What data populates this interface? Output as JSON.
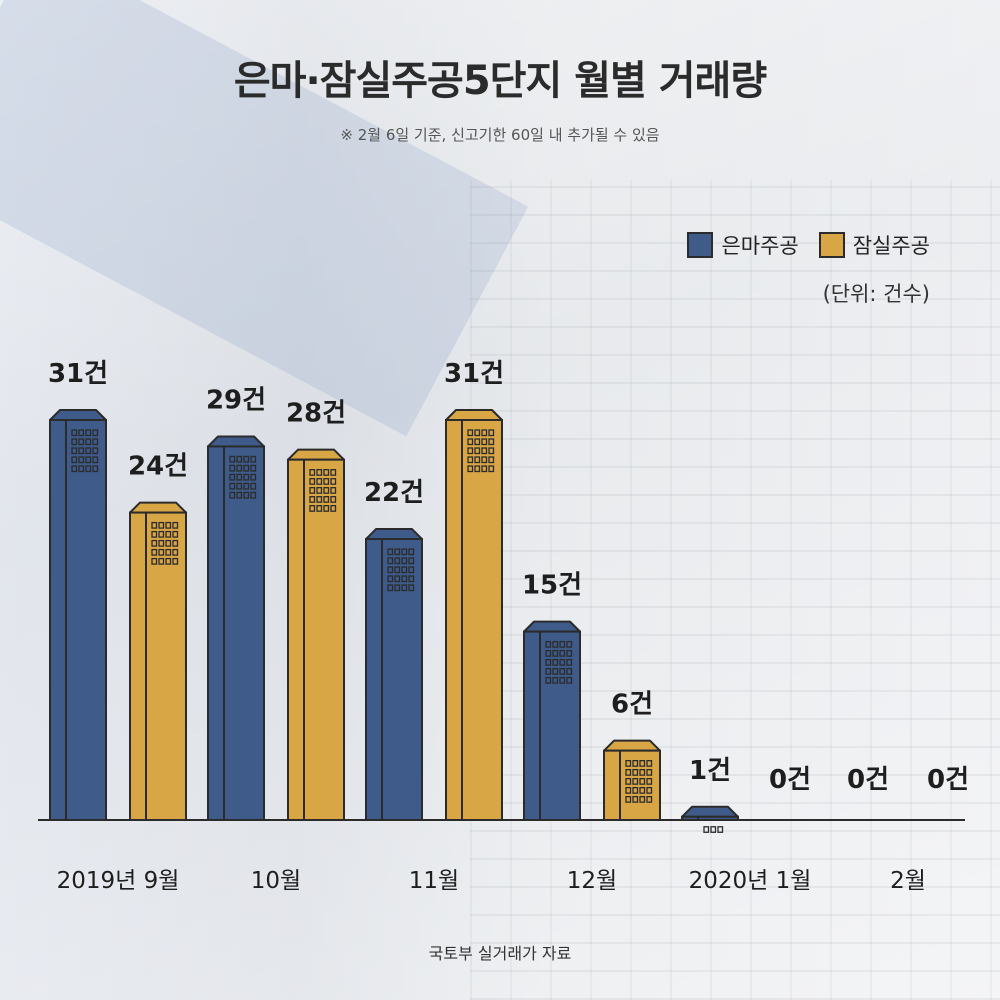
{
  "colors": {
    "eunma": "#3e5b8a",
    "jamsil": "#d8a645",
    "outline": "#2b2b2b"
  },
  "legend": {
    "eunma_label": "은마주공",
    "jamsil_label": "잠실주공"
  },
  "source": "국토부 실거래가 자료",
  "chart_data": {
    "type": "bar",
    "title": "은마·잠실주공5단지 월별 거래량",
    "subtitle": "※ 2월 6일 기준, 신고기한 60일 내 추가될 수 있음",
    "unit_label": "(단위: 건수)",
    "value_suffix": "건",
    "categories": [
      "2019년 9월",
      "10월",
      "11월",
      "12월",
      "2020년 1월",
      "2월"
    ],
    "series": [
      {
        "name": "은마주공",
        "values": [
          31,
          29,
          22,
          15,
          1,
          0
        ]
      },
      {
        "name": "잠실주공",
        "values": [
          24,
          28,
          31,
          6,
          0,
          0
        ]
      }
    ],
    "ylim": [
      0,
      31
    ],
    "legend_position": "top-right",
    "grid": false
  }
}
